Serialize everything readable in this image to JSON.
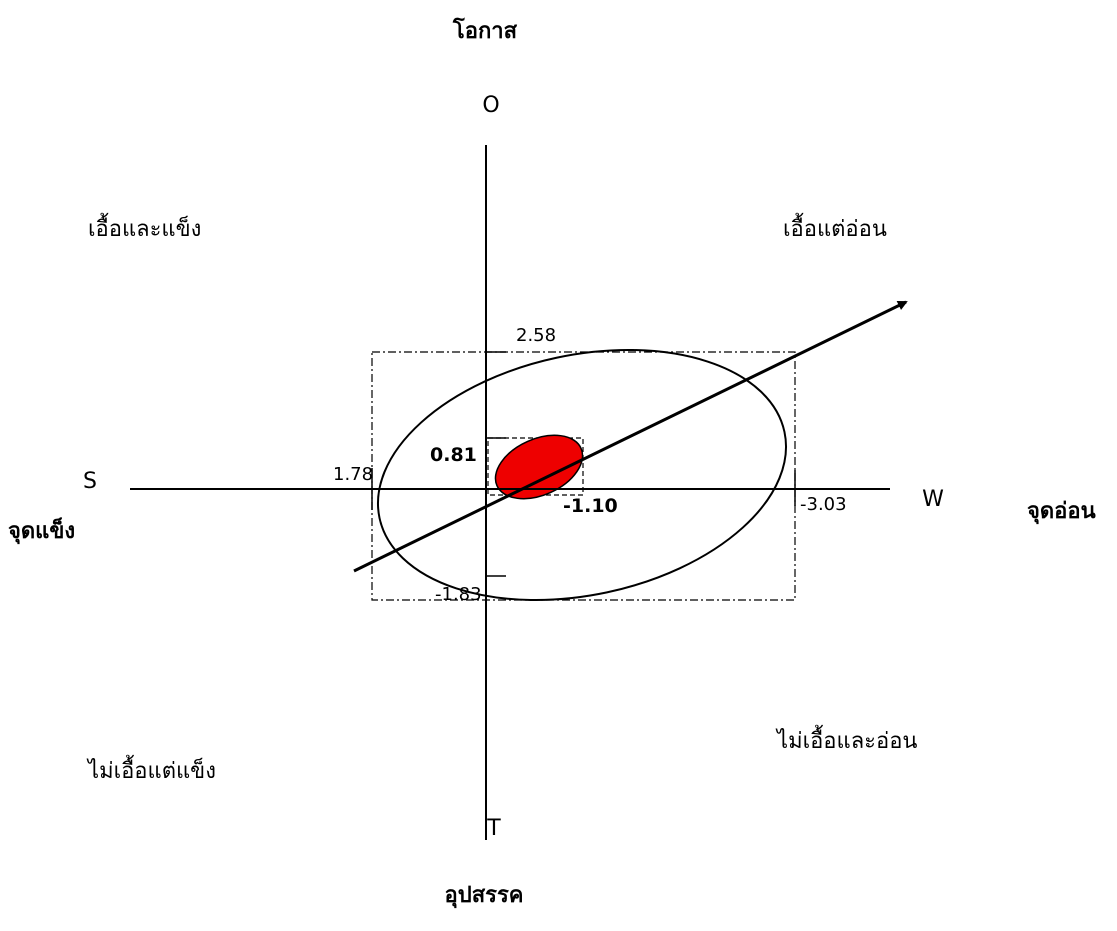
{
  "axes": {
    "top_title": "โอกาส",
    "bottom_title": "อุปสรรค",
    "left_title": "จุดแข็ง",
    "right_title": "จุดอ่อน",
    "top_letter": "O",
    "bottom_letter": "T",
    "left_letter": "S",
    "right_letter": "W"
  },
  "quadrants": {
    "top_left": "เอื้อและแข็ง",
    "top_right": "เอื้อแต่อ่อน",
    "bottom_left": "ไม่เอื้อแต่แข็ง",
    "bottom_right": "ไม่เอื้อและอ่อน"
  },
  "outer_values": {
    "top": "2.58",
    "bottom": "-1.83",
    "left": "1.78",
    "right": "-3.03"
  },
  "inner_values": {
    "top": "0.81",
    "right": "-1.10"
  },
  "colors": {
    "highlight": "#ee0000",
    "line": "#000000"
  }
}
